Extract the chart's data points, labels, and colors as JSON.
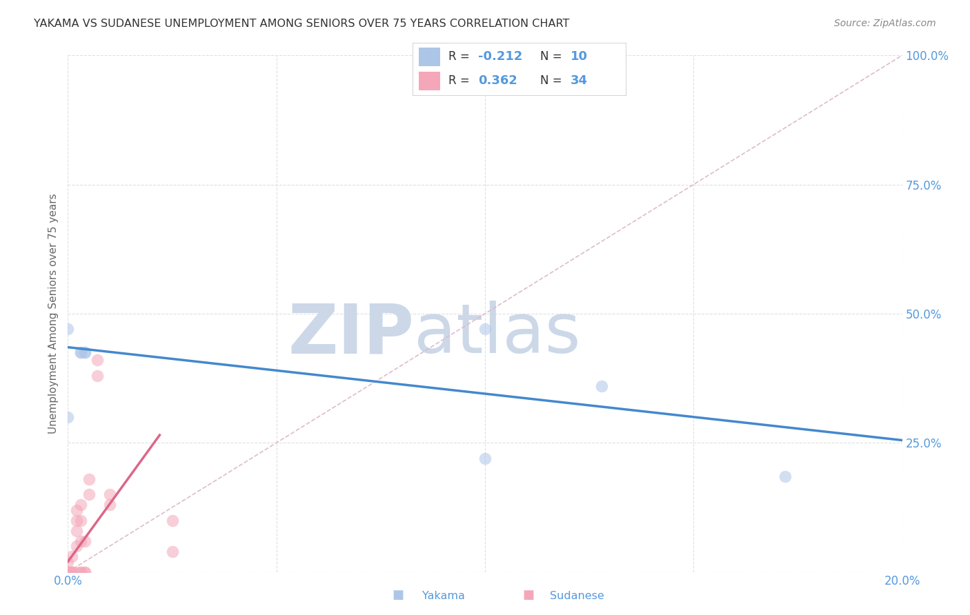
{
  "title": "YAKAMA VS SUDANESE UNEMPLOYMENT AMONG SENIORS OVER 75 YEARS CORRELATION CHART",
  "source": "Source: ZipAtlas.com",
  "ylabel": "Unemployment Among Seniors over 75 years",
  "xmin": 0.0,
  "xmax": 0.2,
  "ymin": 0.0,
  "ymax": 1.0,
  "xticks": [
    0.0,
    0.05,
    0.1,
    0.15,
    0.2
  ],
  "xtick_labels": [
    "0.0%",
    "",
    "",
    "",
    "20.0%"
  ],
  "yticks_right": [
    0.0,
    0.25,
    0.5,
    0.75,
    1.0
  ],
  "ytick_labels_right": [
    "",
    "25.0%",
    "50.0%",
    "75.0%",
    "100.0%"
  ],
  "yakama_color": "#adc6e8",
  "sudanese_color": "#f4a7b9",
  "yakama_line_color": "#4488cc",
  "sudanese_line_color": "#dd6688",
  "diagonal_color": "#ddbbcc",
  "watermark_zip": "ZIP",
  "watermark_atlas": "atlas",
  "watermark_color": "#ccd8e8",
  "background_color": "#ffffff",
  "title_color": "#333333",
  "source_color": "#888888",
  "axis_label_color": "#5599dd",
  "legend_color": "#5599dd",
  "yakama_x": [
    0.0,
    0.0,
    0.003,
    0.003,
    0.004,
    0.004,
    0.1,
    0.1,
    0.128,
    0.172
  ],
  "yakama_y": [
    0.3,
    0.47,
    0.425,
    0.425,
    0.425,
    0.425,
    0.47,
    0.22,
    0.36,
    0.185
  ],
  "sudanese_x": [
    0.0,
    0.0,
    0.0,
    0.0,
    0.0,
    0.0,
    0.0,
    0.0,
    0.001,
    0.001,
    0.001,
    0.001,
    0.001,
    0.002,
    0.002,
    0.002,
    0.002,
    0.002,
    0.003,
    0.003,
    0.003,
    0.003,
    0.003,
    0.004,
    0.004,
    0.004,
    0.005,
    0.005,
    0.007,
    0.007,
    0.01,
    0.01,
    0.025,
    0.025
  ],
  "sudanese_y": [
    0.0,
    0.0,
    0.0,
    0.0,
    0.0,
    0.0,
    0.0,
    0.02,
    0.0,
    0.0,
    0.0,
    0.0,
    0.03,
    0.0,
    0.05,
    0.08,
    0.1,
    0.12,
    0.0,
    0.0,
    0.06,
    0.1,
    0.13,
    0.0,
    0.0,
    0.06,
    0.15,
    0.18,
    0.38,
    0.41,
    0.13,
    0.15,
    0.04,
    0.1
  ],
  "yakama_line_x0": 0.0,
  "yakama_line_y0": 0.435,
  "yakama_line_x1": 0.2,
  "yakama_line_y1": 0.255,
  "sudanese_line_x0": 0.0,
  "sudanese_line_y0": 0.02,
  "sudanese_line_x1": 0.022,
  "sudanese_line_y1": 0.265,
  "marker_size": 160,
  "marker_alpha": 0.55
}
